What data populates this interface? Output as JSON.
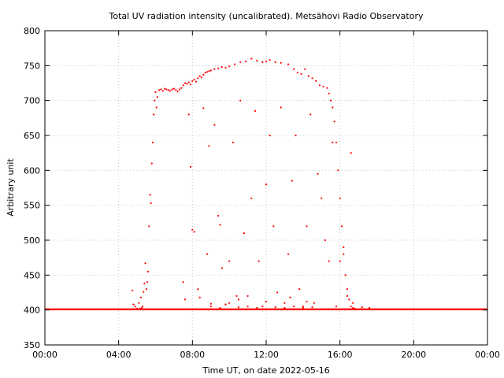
{
  "chart_data": {
    "type": "scatter",
    "title": "Total UV radiation intensity (uncalibrated). Metsähovi Radio Observatory",
    "xlabel": "Time UT, on date 2022-05-16",
    "ylabel": "Arbitrary unit",
    "xlim": [
      0,
      24
    ],
    "ylim": [
      350,
      800
    ],
    "xticks": [
      {
        "value": 0,
        "label": "00:00"
      },
      {
        "value": 4,
        "label": "04:00"
      },
      {
        "value": 8,
        "label": "08:00"
      },
      {
        "value": 12,
        "label": "12:00"
      },
      {
        "value": 16,
        "label": "16:00"
      },
      {
        "value": 20,
        "label": "20:00"
      },
      {
        "value": 24,
        "label": "00:00"
      }
    ],
    "yticks": [
      350,
      400,
      450,
      500,
      550,
      600,
      650,
      700,
      750,
      800
    ],
    "grid": true,
    "marker_color": "#ff0000",
    "series": [
      {
        "baseline": [
          [
            0.0,
            401
          ],
          [
            5.0,
            401
          ],
          [
            16.9,
            401
          ],
          [
            24.0,
            401
          ]
        ],
        "points": [
          [
            4.75,
            428
          ],
          [
            4.8,
            408
          ],
          [
            4.9,
            405
          ],
          [
            5.0,
            402
          ],
          [
            5.1,
            410
          ],
          [
            5.15,
            402
          ],
          [
            5.2,
            418
          ],
          [
            5.25,
            403
          ],
          [
            5.3,
            405
          ],
          [
            5.35,
            426
          ],
          [
            5.4,
            438
          ],
          [
            5.45,
            467
          ],
          [
            5.5,
            430
          ],
          [
            5.55,
            440
          ],
          [
            5.6,
            455
          ],
          [
            5.65,
            520
          ],
          [
            5.7,
            565
          ],
          [
            5.75,
            553
          ],
          [
            5.8,
            610
          ],
          [
            5.85,
            640
          ],
          [
            5.9,
            680
          ],
          [
            5.95,
            700
          ],
          [
            6.0,
            712
          ],
          [
            6.05,
            690
          ],
          [
            6.1,
            705
          ],
          [
            6.2,
            715
          ],
          [
            6.3,
            716
          ],
          [
            6.4,
            714
          ],
          [
            6.5,
            717
          ],
          [
            6.6,
            716
          ],
          [
            6.7,
            715
          ],
          [
            6.8,
            714
          ],
          [
            6.9,
            716
          ],
          [
            7.0,
            717
          ],
          [
            7.1,
            715
          ],
          [
            7.2,
            713
          ],
          [
            7.3,
            716
          ],
          [
            7.4,
            718
          ],
          [
            7.5,
            722
          ],
          [
            7.6,
            725
          ],
          [
            7.7,
            724
          ],
          [
            7.8,
            726
          ],
          [
            7.9,
            723
          ],
          [
            8.0,
            728
          ],
          [
            8.1,
            730
          ],
          [
            8.2,
            727
          ],
          [
            8.3,
            732
          ],
          [
            8.4,
            735
          ],
          [
            8.5,
            733
          ],
          [
            8.6,
            737
          ],
          [
            8.7,
            740
          ],
          [
            8.8,
            741
          ],
          [
            8.9,
            742
          ],
          [
            9.0,
            743
          ],
          [
            9.2,
            745
          ],
          [
            9.4,
            746
          ],
          [
            9.6,
            748
          ],
          [
            9.8,
            747
          ],
          [
            10.0,
            749
          ],
          [
            10.3,
            752
          ],
          [
            10.6,
            755
          ],
          [
            10.9,
            756
          ],
          [
            11.2,
            760
          ],
          [
            11.5,
            757
          ],
          [
            11.8,
            755
          ],
          [
            12.0,
            756
          ],
          [
            12.2,
            758
          ],
          [
            12.5,
            755
          ],
          [
            12.8,
            754
          ],
          [
            13.2,
            752
          ],
          [
            13.5,
            745
          ],
          [
            13.7,
            740
          ],
          [
            13.9,
            738
          ],
          [
            14.1,
            745
          ],
          [
            14.3,
            735
          ],
          [
            14.5,
            732
          ],
          [
            14.7,
            728
          ],
          [
            14.9,
            722
          ],
          [
            15.1,
            720
          ],
          [
            15.3,
            718
          ],
          [
            15.4,
            710
          ],
          [
            15.5,
            700
          ],
          [
            15.6,
            690
          ],
          [
            15.7,
            670
          ],
          [
            15.8,
            640
          ],
          [
            15.9,
            600
          ],
          [
            16.0,
            560
          ],
          [
            16.1,
            520
          ],
          [
            16.2,
            480
          ],
          [
            16.3,
            450
          ],
          [
            16.4,
            430
          ],
          [
            16.5,
            415
          ],
          [
            16.6,
            405
          ],
          [
            16.7,
            403
          ],
          [
            16.8,
            402
          ],
          [
            7.5,
            440
          ],
          [
            7.6,
            415
          ],
          [
            7.8,
            680
          ],
          [
            7.9,
            605
          ],
          [
            8.0,
            515
          ],
          [
            8.1,
            512
          ],
          [
            8.3,
            430
          ],
          [
            8.4,
            418
          ],
          [
            8.6,
            689
          ],
          [
            8.8,
            480
          ],
          [
            8.9,
            635
          ],
          [
            9.0,
            409
          ],
          [
            9.2,
            665
          ],
          [
            9.4,
            535
          ],
          [
            9.5,
            522
          ],
          [
            9.6,
            460
          ],
          [
            9.8,
            408
          ],
          [
            10.0,
            470
          ],
          [
            10.2,
            640
          ],
          [
            10.4,
            420
          ],
          [
            10.6,
            700
          ],
          [
            10.8,
            510
          ],
          [
            11.0,
            405
          ],
          [
            11.2,
            560
          ],
          [
            11.4,
            685
          ],
          [
            11.6,
            470
          ],
          [
            11.8,
            405
          ],
          [
            12.0,
            580
          ],
          [
            12.2,
            650
          ],
          [
            12.4,
            520
          ],
          [
            12.6,
            425
          ],
          [
            12.8,
            690
          ],
          [
            13.0,
            410
          ],
          [
            13.2,
            480
          ],
          [
            13.4,
            585
          ],
          [
            13.6,
            650
          ],
          [
            13.8,
            430
          ],
          [
            14.0,
            405
          ],
          [
            14.2,
            520
          ],
          [
            14.4,
            680
          ],
          [
            14.6,
            410
          ],
          [
            14.8,
            595
          ],
          [
            15.0,
            560
          ],
          [
            15.2,
            500
          ],
          [
            15.4,
            470
          ],
          [
            15.6,
            640
          ],
          [
            15.8,
            405
          ],
          [
            16.0,
            470
          ],
          [
            16.2,
            490
          ],
          [
            16.4,
            420
          ],
          [
            16.6,
            625
          ],
          [
            16.7,
            410
          ],
          [
            17.2,
            404
          ],
          [
            17.6,
            403
          ],
          [
            9.0,
            405
          ],
          [
            9.5,
            403
          ],
          [
            10.5,
            404
          ],
          [
            11.5,
            403
          ],
          [
            12.5,
            404
          ],
          [
            13.0,
            403
          ],
          [
            13.5,
            405
          ],
          [
            14.0,
            403
          ],
          [
            14.5,
            404
          ],
          [
            10.0,
            410
          ],
          [
            10.5,
            415
          ],
          [
            11.0,
            420
          ],
          [
            12.0,
            412
          ],
          [
            13.3,
            418
          ],
          [
            14.2,
            412
          ]
        ]
      }
    ]
  }
}
